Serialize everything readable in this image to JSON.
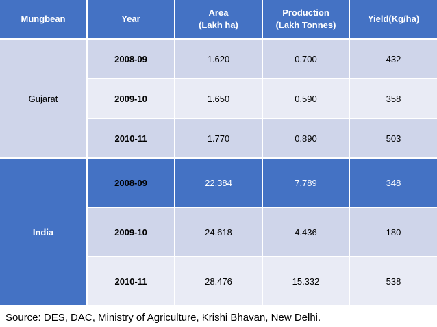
{
  "table": {
    "headers": {
      "crop": "Mungbean",
      "year": "Year",
      "area_line1": "Area",
      "area_line2": "(Lakh ha)",
      "production_line1": "Production",
      "production_line2": "(Lakh Tonnes)",
      "yield": "Yield(Kg/ha)"
    },
    "groups": [
      {
        "region": "Gujarat",
        "rows": [
          {
            "year": "2008-09",
            "area": "1.620",
            "production": "0.700",
            "yield": "432"
          },
          {
            "year": "2009-10",
            "area": "1.650",
            "production": "0.590",
            "yield": "358"
          },
          {
            "year": "2010-11",
            "area": "1.770",
            "production": "0.890",
            "yield": "503"
          }
        ]
      },
      {
        "region": "India",
        "rows": [
          {
            "year": "2008-09",
            "area": "22.384",
            "production": "7.789",
            "yield": "348"
          },
          {
            "year": "2009-10",
            "area": "24.618",
            "production": "4.436",
            "yield": "180"
          },
          {
            "year": "2010-11",
            "area": "28.476",
            "production": "15.332",
            "yield": "538"
          }
        ]
      }
    ]
  },
  "source": "Source: DES, DAC, Ministry of Agriculture, Krishi Bhavan, New Delhi.",
  "colors": {
    "header": "#4472c4",
    "band_light": "#cfd5ea",
    "band_lighter": "#e9ebf5",
    "band_dark": "#4472c4"
  }
}
